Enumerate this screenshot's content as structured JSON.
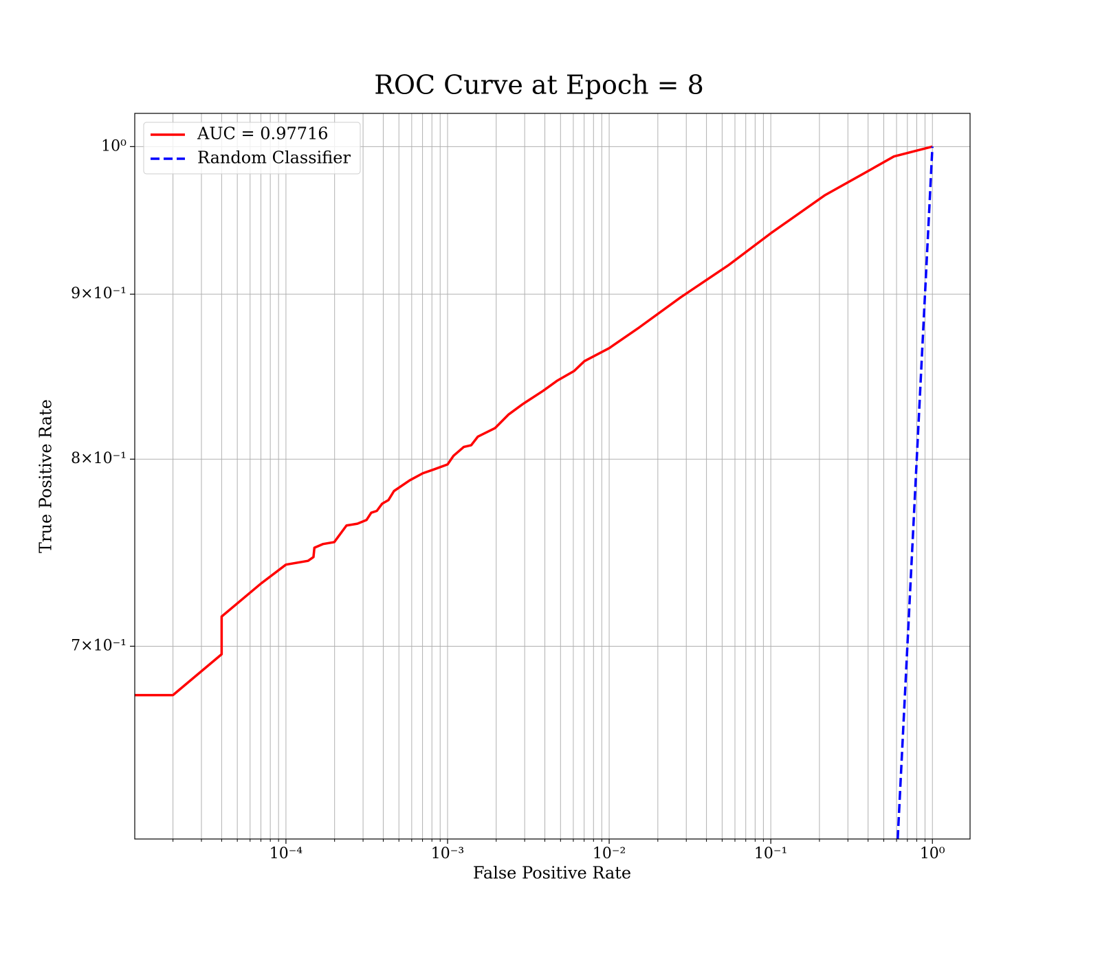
{
  "chart_data": {
    "type": "line",
    "title": "ROC Curve at Epoch = 8",
    "xlabel": "False Positive Rate",
    "ylabel": "True Positive Rate",
    "xscale": "log",
    "yscale": "log",
    "xlim": [
      1.16e-05,
      1.71
    ],
    "ylim": [
      0.61,
      1.024
    ],
    "xticks": [
      {
        "value": 0.0001,
        "label": "10⁻⁴"
      },
      {
        "value": 0.001,
        "label": "10⁻³"
      },
      {
        "value": 0.01,
        "label": "10⁻²"
      },
      {
        "value": 0.1,
        "label": "10⁻¹"
      },
      {
        "value": 1,
        "label": "10⁰"
      }
    ],
    "xminorticks": [
      2e-05,
      3e-05,
      4e-05,
      5e-05,
      6e-05,
      7e-05,
      8e-05,
      9e-05,
      0.0002,
      0.0003,
      0.0004,
      0.0005,
      0.0006,
      0.0007,
      0.0008,
      0.0009,
      0.002,
      0.003,
      0.004,
      0.005,
      0.006,
      0.007,
      0.008,
      0.009,
      0.02,
      0.03,
      0.04,
      0.05,
      0.06,
      0.07,
      0.08,
      0.09,
      0.2,
      0.3,
      0.4,
      0.5,
      0.6,
      0.7,
      0.8,
      0.9
    ],
    "yticks": [
      {
        "value": 1,
        "label": "10⁰"
      },
      {
        "value": 0.9,
        "label": "9×10⁻¹"
      },
      {
        "value": 0.8,
        "label": "8×10⁻¹"
      },
      {
        "value": 0.7,
        "label": "7×10⁻¹"
      }
    ],
    "grid": true,
    "legend": "upper left",
    "series": [
      {
        "name": "AUC = 0.97716",
        "color": "#ff0000",
        "linestyle": "solid",
        "x": [
          1.16e-05,
          2e-05,
          4e-05,
          4e-05,
          7e-05,
          0.0001,
          0.000137,
          0.000148,
          0.00015,
          0.00017,
          0.000199,
          0.000237,
          0.000277,
          0.000315,
          0.000337,
          0.000365,
          0.000394,
          0.000431,
          0.000466,
          0.000583,
          0.000703,
          0.000814,
          0.001,
          0.00109,
          0.00126,
          0.0014,
          0.00154,
          0.00197,
          0.00239,
          0.00291,
          0.0039,
          0.00475,
          0.00607,
          0.00703,
          0.01,
          0.0154,
          0.0277,
          0.055,
          0.1,
          0.217,
          0.39,
          0.578,
          1
        ],
        "values": [
          0.676,
          0.676,
          0.696,
          0.715,
          0.732,
          0.742,
          0.744,
          0.746,
          0.751,
          0.753,
          0.754,
          0.763,
          0.764,
          0.766,
          0.77,
          0.771,
          0.775,
          0.777,
          0.782,
          0.788,
          0.792,
          0.794,
          0.797,
          0.802,
          0.807,
          0.808,
          0.813,
          0.818,
          0.826,
          0.832,
          0.84,
          0.846,
          0.852,
          0.858,
          0.866,
          0.879,
          0.898,
          0.919,
          0.94,
          0.966,
          0.982,
          0.993,
          1
        ]
      },
      {
        "name": "Random Classifier",
        "color": "#0000ff",
        "linestyle": "dashed",
        "x": [
          0.61,
          1
        ],
        "values": [
          0.61,
          1
        ]
      }
    ]
  }
}
